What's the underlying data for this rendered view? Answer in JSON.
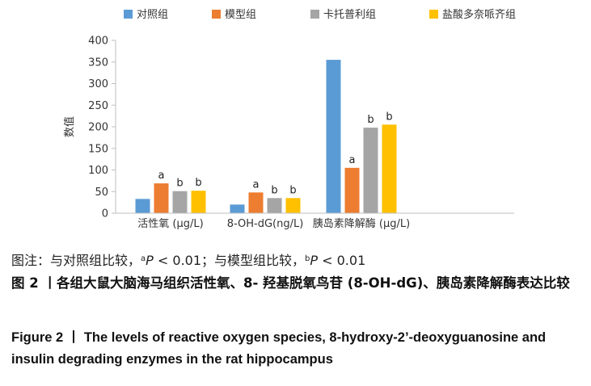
{
  "chart_data": {
    "type": "bar",
    "ylabel": "数值",
    "ylim": [
      0,
      400
    ],
    "yticks": [
      0,
      50,
      100,
      150,
      200,
      250,
      300,
      350,
      400
    ],
    "categories": [
      "活性氧 (μg/L)",
      "8-OH-dG(ng/L)",
      "胰岛素降解酶 (μg/L)"
    ],
    "legend_position": "top",
    "grid": false,
    "series": [
      {
        "name": "对照组",
        "color": "#5b9bd5",
        "values": [
          33,
          20,
          355
        ],
        "labels": [
          "",
          "",
          ""
        ]
      },
      {
        "name": "模型组",
        "color": "#ed7d31",
        "values": [
          69,
          48,
          105
        ],
        "labels": [
          "a",
          "a",
          "a"
        ]
      },
      {
        "name": "卡托普利组",
        "color": "#a5a5a5",
        "values": [
          51,
          35,
          198
        ],
        "labels": [
          "b",
          "b",
          "b"
        ]
      },
      {
        "name": "盐酸多奈哌齐组",
        "color": "#ffc000",
        "values": [
          52,
          35,
          205
        ],
        "labels": [
          "b",
          "b",
          "b"
        ]
      }
    ]
  },
  "note": {
    "prefix": "图注：与对照组比较，",
    "sup1": "a",
    "p1": "P",
    "v1": " < 0.01；与模型组比较，",
    "sup2": "b",
    "p2": "P",
    "v2": " < 0.01"
  },
  "caption_zh": "图 2 丨各组大鼠大脑海马组织活性氧、8- 羟基脱氧鸟苷 (8-OH-dG)、胰岛素降解酶表达比较",
  "caption_en": "Figure 2 丨 The levels of reactive oxygen species, 8-hydroxy-2’-deoxyguanosine and insulin degrading enzymes in the rat hippocampus"
}
